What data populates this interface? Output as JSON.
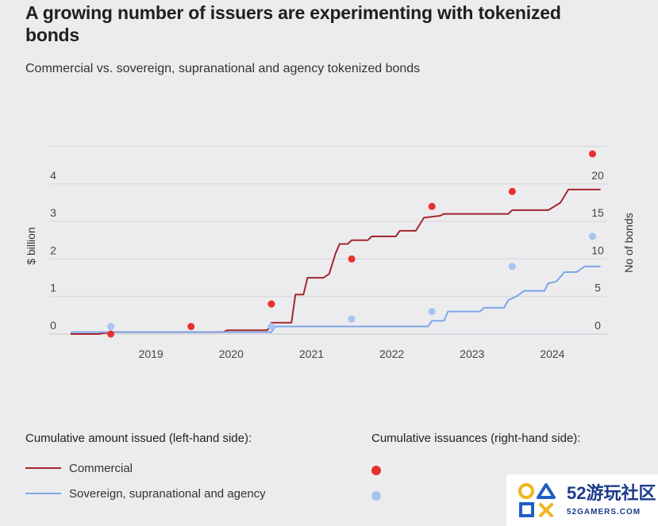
{
  "title": "A growing number of issuers are experimenting with tokenized bonds",
  "subtitle": "Commercial vs. sovereign, supranational and agency tokenized bonds",
  "legend": {
    "left_heading": "Cumulative amount issued (left-hand side):",
    "right_heading": "Cumulative issuances (right-hand side):",
    "commercial": "Commercial",
    "sovereign": "Sovereign, supranational and agency"
  },
  "watermark": {
    "main": "52游玩社区",
    "sub": "52GAMERS.COM"
  },
  "colors": {
    "commercial": "#a3262e",
    "sovereign": "#7ea6e8",
    "commercial_dot": "#e8302e",
    "sovereign_dot": "#a9c4f1"
  },
  "chart_data": {
    "type": "line",
    "ylabel_left": "$ billion",
    "ylabel_right": "No of bonds",
    "yticks_left": [
      "0",
      "1",
      "2",
      "3",
      "4"
    ],
    "yticks_right": [
      "0",
      "5",
      "10",
      "15",
      "20"
    ],
    "ylim_left": [
      0,
      5
    ],
    "ylim_right": [
      0,
      25
    ],
    "xticks": [
      "2019",
      "2020",
      "2021",
      "2022",
      "2023",
      "2024"
    ],
    "xlim": [
      2018.0,
      2024.95
    ],
    "series": [
      {
        "name": "Commercial",
        "axis": "left",
        "points": [
          [
            2018.0,
            0.0
          ],
          [
            2018.35,
            0.0
          ],
          [
            2018.5,
            0.05
          ],
          [
            2019.9,
            0.05
          ],
          [
            2019.95,
            0.1
          ],
          [
            2020.45,
            0.1
          ],
          [
            2020.5,
            0.3
          ],
          [
            2020.75,
            0.3
          ],
          [
            2020.8,
            1.05
          ],
          [
            2020.9,
            1.05
          ],
          [
            2020.95,
            1.5
          ],
          [
            2021.15,
            1.5
          ],
          [
            2021.22,
            1.6
          ],
          [
            2021.3,
            2.15
          ],
          [
            2021.35,
            2.4
          ],
          [
            2021.45,
            2.4
          ],
          [
            2021.5,
            2.5
          ],
          [
            2021.7,
            2.5
          ],
          [
            2021.75,
            2.6
          ],
          [
            2022.05,
            2.6
          ],
          [
            2022.1,
            2.75
          ],
          [
            2022.3,
            2.75
          ],
          [
            2022.4,
            3.1
          ],
          [
            2022.6,
            3.15
          ],
          [
            2022.65,
            3.2
          ],
          [
            2023.45,
            3.2
          ],
          [
            2023.5,
            3.3
          ],
          [
            2023.95,
            3.3
          ],
          [
            2024.1,
            3.5
          ],
          [
            2024.2,
            3.85
          ],
          [
            2024.6,
            3.85
          ]
        ]
      },
      {
        "name": "Sovereign, supranational and agency",
        "axis": "left",
        "points": [
          [
            2018.0,
            0.05
          ],
          [
            2020.5,
            0.05
          ],
          [
            2020.55,
            0.2
          ],
          [
            2022.45,
            0.2
          ],
          [
            2022.5,
            0.35
          ],
          [
            2022.65,
            0.35
          ],
          [
            2022.7,
            0.6
          ],
          [
            2023.1,
            0.6
          ],
          [
            2023.15,
            0.7
          ],
          [
            2023.4,
            0.7
          ],
          [
            2023.45,
            0.9
          ],
          [
            2023.55,
            1.0
          ],
          [
            2023.65,
            1.15
          ],
          [
            2023.9,
            1.15
          ],
          [
            2023.95,
            1.35
          ],
          [
            2024.05,
            1.4
          ],
          [
            2024.15,
            1.65
          ],
          [
            2024.3,
            1.65
          ],
          [
            2024.4,
            1.8
          ],
          [
            2024.6,
            1.8
          ]
        ]
      }
    ],
    "dots": [
      {
        "series": "Commercial",
        "axis": "right",
        "points": [
          [
            2018.5,
            0
          ],
          [
            2019.5,
            1
          ],
          [
            2020.5,
            4
          ],
          [
            2021.5,
            10
          ],
          [
            2022.5,
            17
          ],
          [
            2023.5,
            19
          ],
          [
            2024.5,
            24
          ]
        ]
      },
      {
        "series": "Sovereign, supranational and agency",
        "axis": "right",
        "points": [
          [
            2018.5,
            1
          ],
          [
            2020.5,
            1
          ],
          [
            2021.5,
            2
          ],
          [
            2022.5,
            3
          ],
          [
            2023.5,
            9
          ],
          [
            2024.5,
            13
          ]
        ]
      }
    ],
    "grid": true
  }
}
